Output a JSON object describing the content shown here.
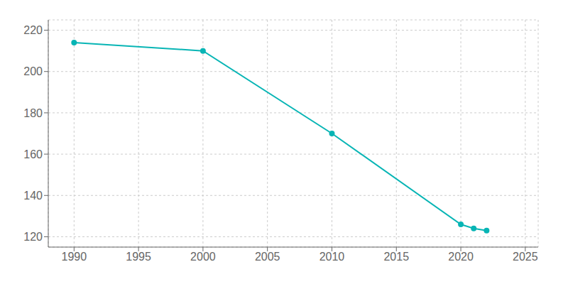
{
  "chart_data": {
    "type": "line",
    "x": [
      1990,
      2000,
      2010,
      2020,
      2021,
      2022
    ],
    "values": [
      214,
      210,
      170,
      126,
      124,
      123
    ],
    "color": "#08b5b5",
    "marker": "circle",
    "xlim": [
      1988,
      2026
    ],
    "ylim": [
      115,
      225
    ],
    "xticks": [
      1990,
      1995,
      2000,
      2005,
      2010,
      2015,
      2020,
      2025
    ],
    "yticks": [
      120,
      140,
      160,
      180,
      200,
      220
    ],
    "grid": true
  }
}
